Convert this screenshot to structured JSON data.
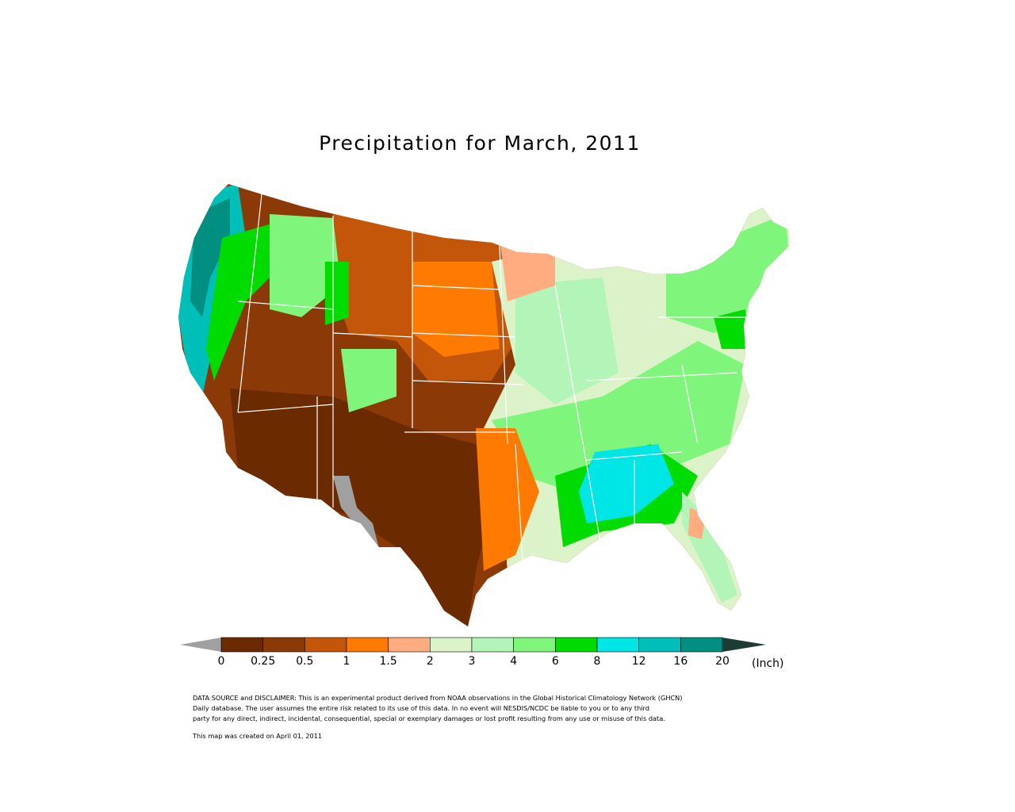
{
  "title": "Precipitation for March, 2011",
  "legend": {
    "unit": "(Inch)",
    "tick_labels": [
      "0",
      "0.25",
      "0.5",
      "1",
      "1.5",
      "2",
      "3",
      "4",
      "6",
      "8",
      "12",
      "16",
      "20"
    ],
    "below_min_color": "#a0a0a0",
    "above_max_color": "#1e3b36",
    "colors": [
      "#6b2a00",
      "#8b3a07",
      "#c4560a",
      "#ff7a00",
      "#ffad80",
      "#dcf2c8",
      "#b3f5b8",
      "#7ff57c",
      "#00dc00",
      "#00e5e5",
      "#00bfb8",
      "#008f80"
    ]
  },
  "disclaimer": {
    "line1": "DATA SOURCE and DISCLAIMER: This is an experimental product derived from NOAA observations in the Global Historical Climatology Network (GHCN)",
    "line2": "Daily database.  The user assumes the entire risk related to its use of this data.   In no event will NESDIS/NCDC be liable to you or to any third",
    "line3": "party for any direct, indirect, incidental, consequential, special or exemplary damages or lost profit resulting from any use or misuse of this data."
  },
  "created": "This map was created on April 01, 2011"
}
